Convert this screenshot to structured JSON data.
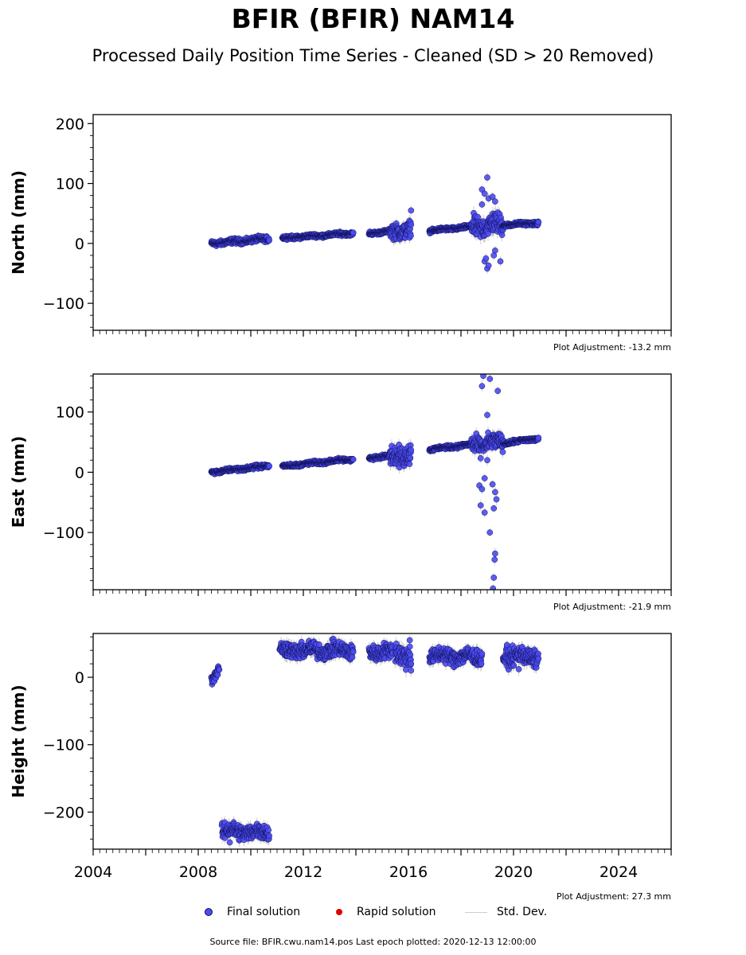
{
  "title": "BFIR (BFIR) NAM14",
  "subtitle": "Processed Daily Position Time Series - Cleaned (SD > 20 Removed)",
  "legend": {
    "final_label": "Final solution",
    "rapid_label": "Rapid solution",
    "std_label": "Std. Dev."
  },
  "footer": "Source file: BFIR.cwu.nam14.pos  Last epoch plotted: 2020-12-13 12:00:00",
  "colors": {
    "final_fill": "#4b4bf0",
    "final_edge": "#10105a",
    "rapid": "#dd0000",
    "std_dev": "#bbbbbb"
  },
  "chart_data": [
    {
      "type": "scatter",
      "ylabel": "North (mm)",
      "xlim": [
        2004,
        2026
      ],
      "ylim": [
        -145,
        215
      ],
      "yticks": [
        -100,
        0,
        100,
        200
      ],
      "ytick_labels": [
        "−100",
        "0",
        "100",
        "200"
      ],
      "xticks": [
        2004,
        2008,
        2012,
        2016,
        2020,
        2024
      ],
      "xtick_labels": [],
      "adjustment": "Plot Adjustment: -13.2 mm",
      "segments": [
        {
          "x": [
            2008.5,
            2010.7
          ],
          "y": [
            0,
            8
          ],
          "noise": 3
        },
        {
          "x": [
            2011.2,
            2013.9
          ],
          "y": [
            9,
            17
          ],
          "noise": 2
        },
        {
          "x": [
            2014.5,
            2015.3
          ],
          "y": [
            17,
            20
          ],
          "noise": 2
        },
        {
          "x": [
            2015.3,
            2016.1
          ],
          "y": [
            18,
            25
          ],
          "noise": 9
        },
        {
          "x": [
            2016.8,
            2018.4
          ],
          "y": [
            21,
            28
          ],
          "noise": 2
        },
        {
          "x": [
            2018.4,
            2019.6
          ],
          "y": [
            28,
            32
          ],
          "noise": 12
        },
        {
          "x": [
            2019.6,
            2020.95
          ],
          "y": [
            31,
            34
          ],
          "noise": 2
        }
      ],
      "outliers": [
        [
          2018.8,
          90
        ],
        [
          2018.9,
          83
        ],
        [
          2019.0,
          110
        ],
        [
          2019.05,
          75
        ],
        [
          2019.2,
          78
        ],
        [
          2019.3,
          70
        ],
        [
          2018.8,
          65
        ],
        [
          2018.9,
          -30
        ],
        [
          2019.0,
          -42
        ],
        [
          2019.05,
          -37
        ],
        [
          2019.3,
          -12
        ],
        [
          2019.25,
          -20
        ],
        [
          2019.5,
          -30
        ],
        [
          2016.1,
          55
        ],
        [
          2018.95,
          -25
        ]
      ]
    },
    {
      "type": "scatter",
      "ylabel": "East (mm)",
      "xlim": [
        2004,
        2026
      ],
      "ylim": [
        -195,
        163
      ],
      "yticks": [
        -100,
        0,
        100
      ],
      "ytick_labels": [
        "−100",
        "0",
        "100"
      ],
      "xticks": [
        2004,
        2008,
        2012,
        2016,
        2020,
        2024
      ],
      "xtick_labels": [],
      "adjustment": "Plot Adjustment: -21.9 mm",
      "segments": [
        {
          "x": [
            2008.5,
            2010.7
          ],
          "y": [
            0,
            11
          ],
          "noise": 2
        },
        {
          "x": [
            2011.2,
            2013.9
          ],
          "y": [
            10,
            22
          ],
          "noise": 2
        },
        {
          "x": [
            2014.5,
            2015.3
          ],
          "y": [
            23,
            28
          ],
          "noise": 2
        },
        {
          "x": [
            2015.3,
            2016.1
          ],
          "y": [
            25,
            32
          ],
          "noise": 11
        },
        {
          "x": [
            2016.8,
            2018.4
          ],
          "y": [
            38,
            46
          ],
          "noise": 2
        },
        {
          "x": [
            2018.4,
            2019.6
          ],
          "y": [
            45,
            50
          ],
          "noise": 10
        },
        {
          "x": [
            2019.6,
            2020.95
          ],
          "y": [
            48,
            56
          ],
          "noise": 2
        }
      ],
      "outliers": [
        [
          2018.85,
          160
        ],
        [
          2019.1,
          155
        ],
        [
          2019.4,
          135
        ],
        [
          2018.8,
          143
        ],
        [
          2019.0,
          95
        ],
        [
          2018.7,
          -22
        ],
        [
          2018.8,
          -28
        ],
        [
          2018.75,
          -55
        ],
        [
          2018.9,
          -67
        ],
        [
          2019.2,
          -20
        ],
        [
          2019.3,
          -33
        ],
        [
          2019.35,
          -45
        ],
        [
          2019.25,
          -60
        ],
        [
          2019.1,
          -100
        ],
        [
          2019.3,
          -135
        ],
        [
          2019.28,
          -145
        ],
        [
          2019.25,
          -175
        ],
        [
          2019.22,
          -193
        ],
        [
          2019.0,
          20
        ],
        [
          2018.9,
          -10
        ]
      ]
    },
    {
      "type": "scatter",
      "ylabel": "Height (mm)",
      "xlim": [
        2004,
        2026
      ],
      "ylim": [
        -255,
        65
      ],
      "yticks": [
        -200,
        -100,
        0
      ],
      "ytick_labels": [
        "−200",
        "−100",
        "0"
      ],
      "xticks": [
        2004,
        2008,
        2012,
        2016,
        2020,
        2024
      ],
      "xtick_labels": [
        "2004",
        "2008",
        "2012",
        "2016",
        "2020",
        "2024"
      ],
      "adjustment": "Plot Adjustment: 27.3 mm",
      "segments": [
        {
          "x": [
            2008.5,
            2008.8
          ],
          "y": [
            -5,
            15
          ],
          "noise": 5
        },
        {
          "x": [
            2008.9,
            2010.7
          ],
          "y": [
            -228,
            -230
          ],
          "noise": 8
        },
        {
          "x": [
            2011.1,
            2013.9
          ],
          "y": [
            40,
            40
          ],
          "noise": 8
        },
        {
          "x": [
            2014.5,
            2015.4
          ],
          "y": [
            38,
            38
          ],
          "noise": 8
        },
        {
          "x": [
            2015.5,
            2016.1
          ],
          "y": [
            40,
            30
          ],
          "noise": 12
        },
        {
          "x": [
            2016.8,
            2018.8
          ],
          "y": [
            32,
            30
          ],
          "noise": 8
        },
        {
          "x": [
            2019.6,
            2020.95
          ],
          "y": [
            32,
            30
          ],
          "noise": 9
        }
      ],
      "outliers": [
        [
          2016.1,
          10
        ],
        [
          2016.05,
          55
        ],
        [
          2019.75,
          48
        ],
        [
          2020.2,
          12
        ],
        [
          2009.2,
          -245
        ]
      ]
    }
  ]
}
